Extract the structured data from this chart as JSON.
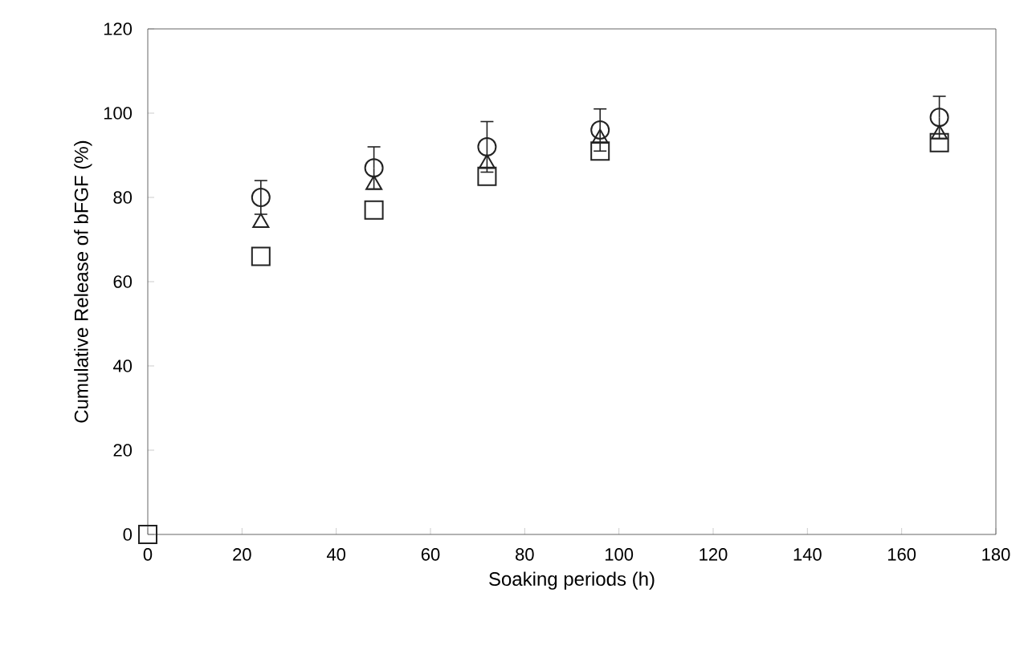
{
  "chart_data": {
    "type": "scatter",
    "xlabel": "Soaking periods (h)",
    "ylabel": "Cumulative Release of bFGF (%)",
    "x": [
      0,
      24,
      48,
      72,
      96,
      168
    ],
    "series": [
      {
        "color": "#222222",
        "marker": "circle",
        "values": [
          null,
          80,
          87,
          92,
          96,
          99
        ],
        "errors": [
          null,
          4,
          5,
          6,
          5,
          5
        ]
      },
      {
        "color": "#222222",
        "marker": "triangle",
        "values": [
          null,
          74,
          83,
          88,
          94,
          95
        ]
      },
      {
        "color": "#222222",
        "marker": "square",
        "values": [
          0,
          66,
          77,
          85,
          91,
          93
        ]
      }
    ],
    "xlim": [
      0,
      180
    ],
    "xticks": [
      0,
      20,
      40,
      60,
      80,
      100,
      120,
      140,
      160,
      180
    ],
    "ylim": [
      0,
      120
    ],
    "yticks": [
      0,
      20,
      40,
      60,
      80,
      100,
      120
    ],
    "grid": false
  }
}
